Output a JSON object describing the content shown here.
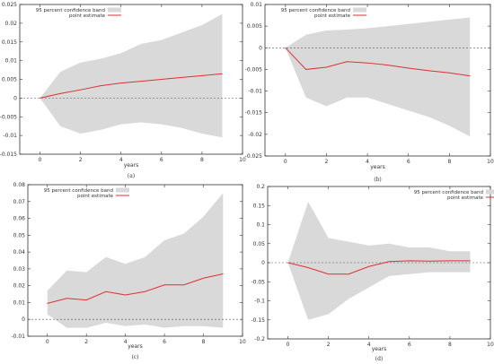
{
  "chart_data": [
    {
      "type": "line",
      "caption": "(a)",
      "xlabel": "years",
      "ylabel": "",
      "xlim": [
        -1,
        10
      ],
      "ylim": [
        -0.015,
        0.025
      ],
      "xticks": [
        0,
        2,
        4,
        6,
        8,
        10
      ],
      "yticks": [
        -0.015,
        -0.01,
        -0.005,
        0,
        0.005,
        0.01,
        0.015,
        0.02,
        0.025
      ],
      "ytick_labels": [
        "-0.015",
        "-0.01",
        "-0.005",
        "0",
        "0.005",
        "0.01",
        "0.015",
        "0.02",
        "0.025"
      ],
      "legend": {
        "position": "top-left",
        "band_label": "95 percent confidence band",
        "line_label": "point estimate"
      },
      "x": [
        0,
        1,
        2,
        3,
        4,
        5,
        6,
        7,
        8,
        9
      ],
      "band_upper": [
        0.0,
        0.007,
        0.0095,
        0.0105,
        0.012,
        0.0145,
        0.0155,
        0.0175,
        0.0195,
        0.0225
      ],
      "band_lower": [
        0.0,
        -0.0075,
        -0.0095,
        -0.0085,
        -0.007,
        -0.0065,
        -0.007,
        -0.008,
        -0.0095,
        -0.0105
      ],
      "point_estimate": [
        0.0,
        0.0012,
        0.0022,
        0.0033,
        0.004,
        0.0045,
        0.005,
        0.0055,
        0.006,
        0.0065
      ],
      "zero_line": true
    },
    {
      "type": "line",
      "caption": "(b)",
      "xlabel": "years",
      "ylabel": "",
      "xlim": [
        -1,
        10
      ],
      "ylim": [
        -0.025,
        0.01
      ],
      "xticks": [
        0,
        2,
        4,
        6,
        8,
        10
      ],
      "yticks": [
        -0.025,
        -0.02,
        -0.015,
        -0.01,
        -0.005,
        0,
        0.005,
        0.01
      ],
      "ytick_labels": [
        "-0.025",
        "-0.02",
        "-0.015",
        "-0.01",
        "-0.005",
        "0",
        "0.005",
        "0.01"
      ],
      "legend": {
        "position": "top-left",
        "band_label": "95 percent confidence band",
        "line_label": "point estimate"
      },
      "x": [
        0,
        1,
        2,
        3,
        4,
        5,
        6,
        7,
        8,
        9
      ],
      "band_upper": [
        0.0,
        0.003,
        0.004,
        0.0042,
        0.0045,
        0.005,
        0.0055,
        0.006,
        0.0065,
        0.007
      ],
      "band_lower": [
        0.0,
        -0.0115,
        -0.0135,
        -0.0115,
        -0.0115,
        -0.013,
        -0.0145,
        -0.016,
        -0.018,
        -0.0205
      ],
      "point_estimate": [
        0.0,
        -0.005,
        -0.0045,
        -0.0032,
        -0.0035,
        -0.004,
        -0.0047,
        -0.0053,
        -0.0058,
        -0.0065
      ],
      "zero_line": true
    },
    {
      "type": "line",
      "caption": "(c)",
      "xlabel": "years",
      "ylabel": "",
      "xlim": [
        -1,
        10
      ],
      "ylim": [
        -0.01,
        0.08
      ],
      "xticks": [
        0,
        2,
        4,
        6,
        8,
        10
      ],
      "yticks": [
        -0.01,
        0,
        0.01,
        0.02,
        0.03,
        0.04,
        0.05,
        0.06,
        0.07,
        0.08
      ],
      "ytick_labels": [
        "-0.01",
        "0",
        "0.01",
        "0.02",
        "0.03",
        "0.04",
        "0.05",
        "0.06",
        "0.07",
        "0.08"
      ],
      "legend": {
        "position": "top-left",
        "band_label": "95 percent confidence band",
        "line_label": "point estimate"
      },
      "x": [
        0,
        1,
        2,
        3,
        4,
        5,
        6,
        7,
        8,
        9
      ],
      "band_upper": [
        0.017,
        0.029,
        0.028,
        0.037,
        0.033,
        0.037,
        0.047,
        0.051,
        0.061,
        0.075
      ],
      "band_lower": [
        0.003,
        -0.005,
        -0.005,
        -0.002,
        -0.004,
        -0.003,
        -0.005,
        -0.004,
        -0.004,
        -0.005
      ],
      "point_estimate": [
        0.0095,
        0.0125,
        0.0115,
        0.0165,
        0.0145,
        0.0165,
        0.0205,
        0.0205,
        0.0245,
        0.027
      ],
      "zero_line": true
    },
    {
      "type": "line",
      "caption": "(d)",
      "xlabel": "years",
      "ylabel": "",
      "xlim": [
        -1,
        10
      ],
      "ylim": [
        -0.2,
        0.2
      ],
      "xticks": [
        0,
        2,
        4,
        6,
        8,
        10
      ],
      "yticks": [
        -0.2,
        -0.15,
        -0.1,
        -0.05,
        0,
        0.05,
        0.1,
        0.15,
        0.2
      ],
      "ytick_labels": [
        "-0.2",
        "-0.15",
        "-0.1",
        "-0.05",
        "0",
        "0.05",
        "0.1",
        "0.15",
        "0.2"
      ],
      "legend": {
        "position": "top-right",
        "band_label": "95 percent confidence band",
        "line_label": "point estimate"
      },
      "x": [
        0,
        1,
        2,
        3,
        4,
        5,
        6,
        7,
        8,
        9
      ],
      "band_upper": [
        0.0,
        0.16,
        0.065,
        0.055,
        0.045,
        0.05,
        0.04,
        0.04,
        0.03,
        0.03
      ],
      "band_lower": [
        0.0,
        -0.15,
        -0.135,
        -0.095,
        -0.065,
        -0.035,
        -0.03,
        -0.025,
        -0.025,
        -0.025
      ],
      "point_estimate": [
        0.0,
        -0.013,
        -0.03,
        -0.03,
        -0.01,
        0.003,
        0.005,
        0.004,
        0.005,
        0.005
      ],
      "zero_line": true
    }
  ]
}
